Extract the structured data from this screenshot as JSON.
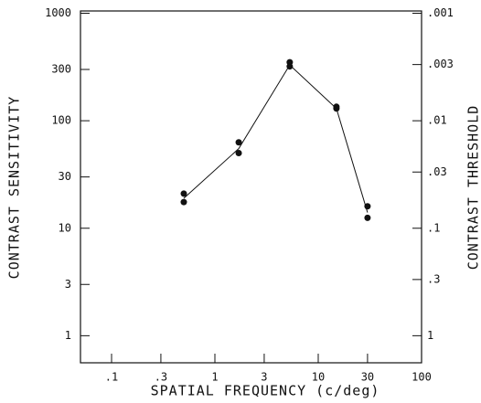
{
  "chart_data": {
    "type": "scatter",
    "xlabel": "SPATIAL FREQUENCY (c/deg)",
    "ylabel": "CONTRAST SENSITIVITY",
    "y2label": "CONTRAST THRESHOLD",
    "xscale": "log",
    "yscale": "log",
    "xlim": [
      0.05,
      100
    ],
    "ylim": [
      0.56,
      1050
    ],
    "y2lim": [
      1.786,
      0.000952
    ],
    "xticks": [
      {
        "value": 0.1,
        "label": ".1"
      },
      {
        "value": 0.3,
        "label": ".3"
      },
      1,
      3,
      10,
      30,
      100
    ],
    "yticks": [
      1,
      3,
      10,
      30,
      100,
      300,
      1000
    ],
    "y2ticks": [
      {
        "value": 0.001,
        "label": ".001"
      },
      {
        "value": 0.003,
        "label": ".003"
      },
      {
        "value": 0.01,
        "label": ".01"
      },
      {
        "value": 0.03,
        "label": ".03"
      },
      {
        "value": 0.1,
        "label": ".1"
      },
      {
        "value": 0.3,
        "label": ".3"
      },
      1
    ],
    "x": [
      0.5,
      1.7,
      5.3,
      15,
      30
    ],
    "color": "#111",
    "series": [
      {
        "values": [
          21,
          63,
          350,
          135,
          16
        ],
        "style": "points"
      },
      {
        "values": [
          17.5,
          50,
          320,
          130,
          12.5
        ],
        "style": "points"
      },
      {
        "values": [
          19,
          55,
          330,
          130,
          14
        ],
        "style": "line"
      }
    ]
  }
}
